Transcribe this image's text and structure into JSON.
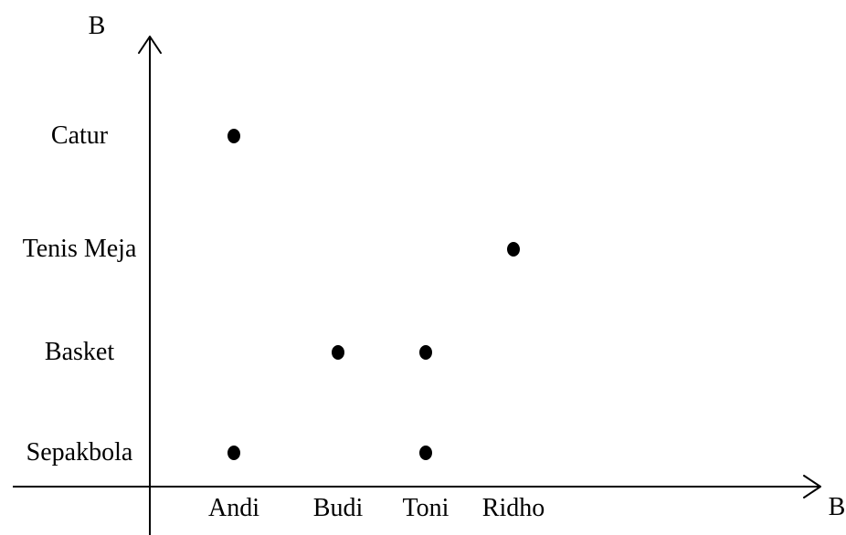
{
  "chart_data": {
    "type": "scatter",
    "xlabel": "B",
    "ylabel": "B",
    "x_categories": [
      "Andi",
      "Budi",
      "Toni",
      "Ridho"
    ],
    "y_categories": [
      "Sepakbola",
      "Basket",
      "Tenis Meja",
      "Catur"
    ],
    "points": [
      {
        "x": "Andi",
        "y": "Catur"
      },
      {
        "x": "Andi",
        "y": "Sepakbola"
      },
      {
        "x": "Budi",
        "y": "Basket"
      },
      {
        "x": "Toni",
        "y": "Basket"
      },
      {
        "x": "Toni",
        "y": "Sepakbola"
      },
      {
        "x": "Ridho",
        "y": "Tenis Meja"
      }
    ],
    "grid": false,
    "colors": {
      "axis": "#000000",
      "point": "#000000"
    }
  }
}
